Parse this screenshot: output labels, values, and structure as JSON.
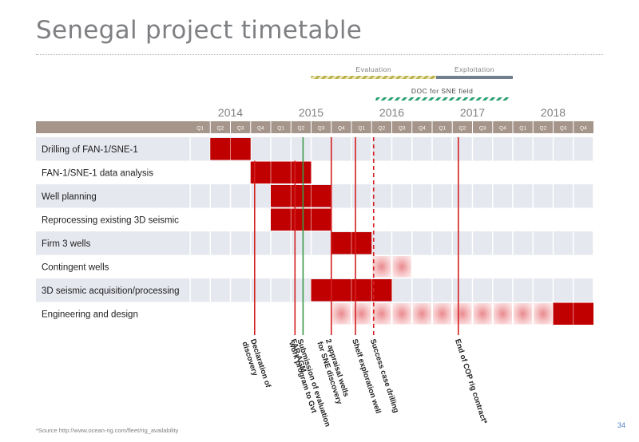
{
  "title": "Senegal project timetable",
  "footnote": "*Source http://www.ocean-rig.com/fleet/rig_availability",
  "page_number": "34",
  "colors": {
    "active": "#c00000",
    "planned": "#f3b3b3",
    "header_bar": "#a6958a",
    "row_band": "#e6e8ef",
    "milestone_line": "#d42020",
    "green_line": "#3a9a4a",
    "evaluation_bar": "#c8c060",
    "doc_bar": "#2aa070",
    "exploitation_bar": "#6f7f8f",
    "phase_text": "#808080",
    "year_text": "#808080"
  },
  "chart_data": {
    "type": "gantt",
    "years": [
      {
        "label": "2014",
        "start": 0
      },
      {
        "label": "2015",
        "start": 4
      },
      {
        "label": "2016",
        "start": 8
      },
      {
        "label": "2017",
        "start": 12
      },
      {
        "label": "2018",
        "start": 16
      }
    ],
    "quarters": [
      "Q1",
      "Q2",
      "Q3",
      "Q4",
      "Q1",
      "Q2",
      "Q3",
      "Q4",
      "Q1",
      "Q2",
      "Q3",
      "Q4",
      "Q1",
      "Q2",
      "Q3",
      "Q4",
      "Q1",
      "Q2",
      "Q3",
      "Q4"
    ],
    "phases": [
      {
        "label": "Evaluation",
        "start": 6,
        "end": 12.2,
        "style": "evaluation"
      },
      {
        "label": "Exploitation",
        "start": 12.2,
        "end": 16,
        "style": "exploitation"
      },
      {
        "label": "DOC for SNE field",
        "start": 9.2,
        "end": 15.8,
        "style": "doc"
      }
    ],
    "tasks": [
      {
        "label": "Drilling of FAN-1/SNE-1",
        "active": [
          [
            1,
            3
          ]
        ],
        "planned": []
      },
      {
        "label": "FAN-1/SNE-1 data analysis",
        "active": [
          [
            3,
            6
          ]
        ],
        "planned": []
      },
      {
        "label": "Well planning",
        "active": [
          [
            4,
            7
          ]
        ],
        "planned": []
      },
      {
        "label": "Reprocessing existing 3D seismic",
        "active": [
          [
            4,
            7
          ]
        ],
        "planned": []
      },
      {
        "label": "Firm 3 wells",
        "active": [
          [
            7,
            9
          ]
        ],
        "planned": []
      },
      {
        "label": "Contingent wells",
        "active": [],
        "planned": [
          [
            9,
            11
          ]
        ]
      },
      {
        "label": "3D seismic acquisition/processing",
        "active": [
          [
            6,
            10
          ]
        ],
        "planned": []
      },
      {
        "label": "Engineering and design",
        "active": [
          [
            18,
            20
          ]
        ],
        "planned": [
          [
            7,
            18
          ]
        ]
      }
    ],
    "milestones": [
      {
        "label": "Declaration of discovery",
        "x": 3.2,
        "style": "solid",
        "color": "red",
        "from_row": 1
      },
      {
        "label": "FAR AGM",
        "x": 5.2,
        "style": "solid",
        "color": "red",
        "from_row": 1
      },
      {
        "label": "Submission of evaluation work program to Gvt",
        "x": 5.6,
        "style": "solid",
        "color": "green",
        "from_row": 0
      },
      {
        "label": "2 appraisal wells for SNE discovery",
        "x": 7.0,
        "style": "solid",
        "color": "red",
        "from_row": 0
      },
      {
        "label": "Shelf exploration well",
        "x": 8.2,
        "style": "solid",
        "color": "red",
        "from_row": 0
      },
      {
        "label": "Success case drilling",
        "x": 9.1,
        "style": "dashed",
        "color": "red",
        "from_row": 0
      },
      {
        "label": "End of COP rig contract*",
        "x": 13.3,
        "style": "solid",
        "color": "red",
        "from_row": 0
      }
    ]
  }
}
